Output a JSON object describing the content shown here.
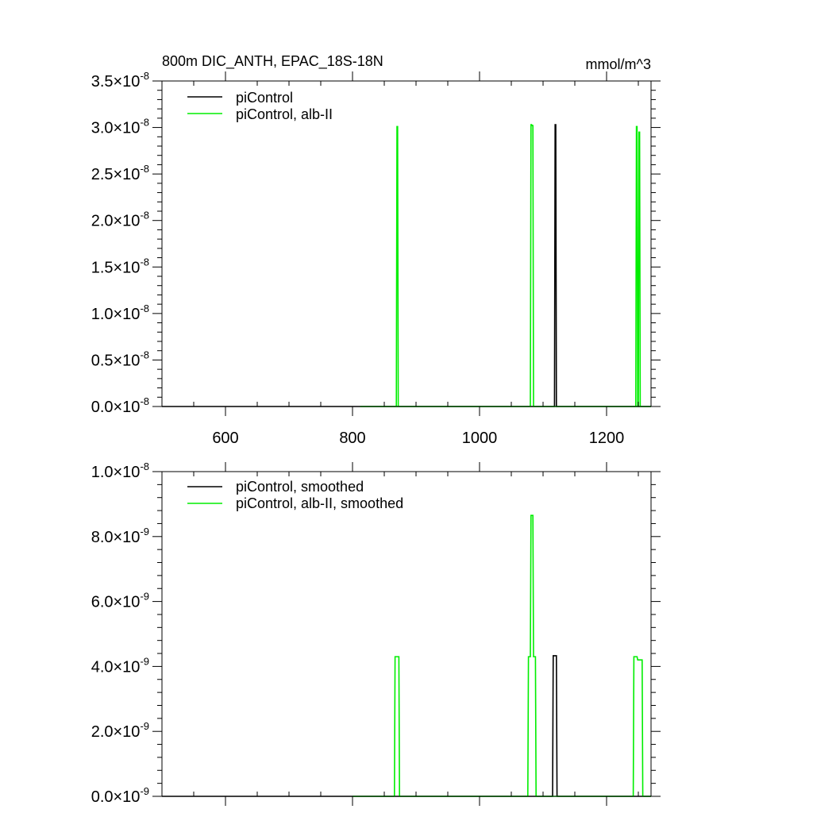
{
  "chart_data": [
    {
      "type": "line",
      "title": "800m DIC_ANTH, EPAC_18S-18N",
      "units": "mmol/m^3",
      "xlim": [
        500,
        1270
      ],
      "ylim": [
        0,
        3.5e-08
      ],
      "x_ticks": [
        600,
        800,
        1000,
        1200
      ],
      "x_tick_labels": [
        "600",
        "800",
        "1000",
        "1200"
      ],
      "x_labels_visible": true,
      "y_ticks": [
        0,
        5e-09,
        1e-08,
        1.5e-08,
        2e-08,
        2.5e-08,
        3e-08,
        3.5e-08
      ],
      "y_tick_labels": [
        {
          "mant": "0.0",
          "exp": "-8"
        },
        {
          "mant": "0.5",
          "exp": "-8"
        },
        {
          "mant": "1.0",
          "exp": "-8"
        },
        {
          "mant": "1.5",
          "exp": "-8"
        },
        {
          "mant": "2.0",
          "exp": "-8"
        },
        {
          "mant": "2.5",
          "exp": "-8"
        },
        {
          "mant": "3.0",
          "exp": "-8"
        },
        {
          "mant": "3.5",
          "exp": "-8"
        }
      ],
      "legend_placement": "top-left",
      "series": [
        {
          "name": "piControl",
          "color": "#000000",
          "x": [
            500,
            1118,
            1119,
            1120,
            1121,
            1270
          ],
          "y": [
            0,
            0,
            3.03e-08,
            3.03e-08,
            0,
            0
          ]
        },
        {
          "name": "piControl, alb-II",
          "color": "#00ee00",
          "x": [
            812,
            869,
            870,
            871,
            872,
            1080,
            1081,
            1082,
            1083,
            1084,
            1085,
            1246,
            1247,
            1248,
            1249,
            1250,
            1251,
            1252,
            1253,
            1270
          ],
          "y": [
            0,
            0,
            3.01e-08,
            3.01e-08,
            0,
            0,
            3.03e-08,
            3.03e-08,
            3.02e-08,
            3.02e-08,
            0,
            0,
            3.01e-08,
            3.01e-08,
            0,
            0,
            2.95e-08,
            2.95e-08,
            0,
            0
          ]
        }
      ]
    },
    {
      "type": "line",
      "xlim": [
        500,
        1270
      ],
      "ylim": [
        0,
        1e-08
      ],
      "x_ticks": [
        600,
        800,
        1000,
        1200
      ],
      "x_tick_labels": [],
      "x_labels_visible": false,
      "y_ticks": [
        0,
        2e-09,
        4e-09,
        6e-09,
        8e-09,
        1e-08
      ],
      "y_tick_labels": [
        {
          "mant": "0.0",
          "exp": "-9"
        },
        {
          "mant": "2.0",
          "exp": "-9"
        },
        {
          "mant": "4.0",
          "exp": "-9"
        },
        {
          "mant": "6.0",
          "exp": "-9"
        },
        {
          "mant": "8.0",
          "exp": "-9"
        },
        {
          "mant": "1.0",
          "exp": "-8"
        }
      ],
      "legend_placement": "top-left",
      "series": [
        {
          "name": "piControl, smoothed",
          "color": "#000000",
          "x": [
            500,
            1115,
            1116,
            1121,
            1122,
            1270
          ],
          "y": [
            0,
            0,
            4.33e-09,
            4.33e-09,
            0,
            0
          ]
        },
        {
          "name": "piControl, alb-II, smoothed",
          "color": "#00ee00",
          "x": [
            800,
            866,
            867,
            873,
            874,
            1076,
            1077,
            1080,
            1081,
            1084,
            1085,
            1088,
            1089,
            1242,
            1243,
            1248,
            1249,
            1250,
            1251,
            1256,
            1257,
            1270
          ],
          "y": [
            0,
            0,
            4.3e-09,
            4.3e-09,
            0,
            0,
            4.3e-09,
            4.3e-09,
            8.65e-09,
            8.65e-09,
            4.3e-09,
            4.3e-09,
            0,
            0,
            4.3e-09,
            4.3e-09,
            4.2e-09,
            4.2e-09,
            4.2e-09,
            4.2e-09,
            0,
            0
          ]
        }
      ]
    }
  ]
}
